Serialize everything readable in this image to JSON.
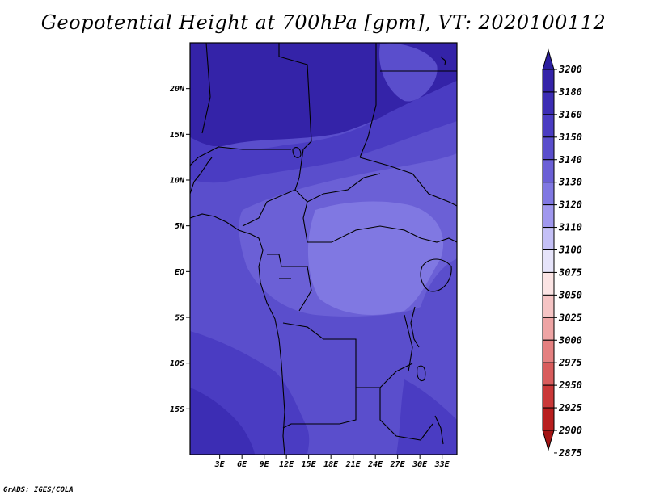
{
  "title": "Geopotential Height at 700hPa [gpm], VT: 2020100112",
  "credit": "GrADS: IGES/COLA",
  "map": {
    "lon_range": [
      -1,
      35
    ],
    "lat_range": [
      -20,
      25
    ],
    "x_ticks": [
      "3E",
      "6E",
      "9E",
      "12E",
      "15E",
      "18E",
      "21E",
      "24E",
      "27E",
      "30E",
      "33E"
    ],
    "x_tick_values": [
      3,
      6,
      9,
      12,
      15,
      18,
      21,
      24,
      27,
      30,
      33
    ],
    "y_ticks": [
      "20N",
      "15N",
      "10N",
      "5N",
      "EQ",
      "5S",
      "10S",
      "15S"
    ],
    "y_tick_values": [
      20,
      15,
      10,
      5,
      0,
      -5,
      -10,
      -15
    ]
  },
  "colorbar": {
    "levels": [
      "3200",
      "3180",
      "3160",
      "3150",
      "3140",
      "3130",
      "3120",
      "3110",
      "3100",
      "3075",
      "3050",
      "3025",
      "3000",
      "2975",
      "2950",
      "2925",
      "2900",
      "2875"
    ],
    "colors": [
      "#2c1fa0",
      "#3423a8",
      "#3c2db4",
      "#4a3cc2",
      "#5a4ecc",
      "#6b60d6",
      "#8078e2",
      "#a098ee",
      "#c4c0f6",
      "#e6e4fa",
      "#fbe4e4",
      "#f5c4c4",
      "#eea4a4",
      "#e48080",
      "#d85c5c",
      "#ca3838",
      "#b81e1e",
      "#a41414"
    ]
  }
}
